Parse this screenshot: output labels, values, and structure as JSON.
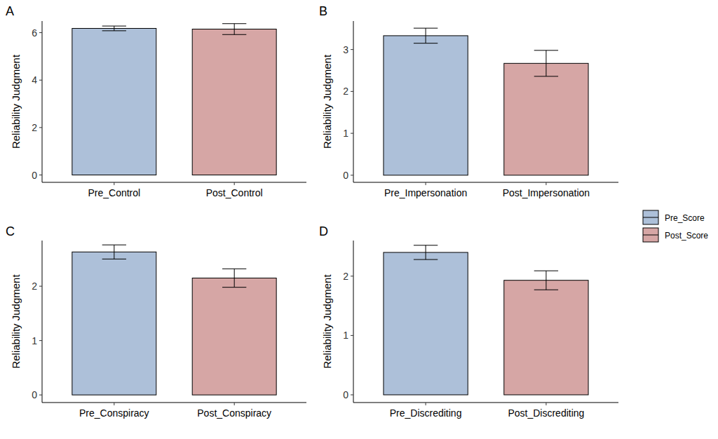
{
  "chart_data": [
    {
      "type": "bar",
      "title": "A",
      "y_label": "Reliability Judgment",
      "categories": [
        "Pre_Control",
        "Post_Control"
      ],
      "values": [
        6.18,
        6.15
      ],
      "errors": [
        0.1,
        0.23
      ],
      "colors": [
        "#adc0d9",
        "#d6a6a5"
      ],
      "ylim": [
        -0.31,
        6.49
      ],
      "yticks": [
        0,
        2,
        4,
        6
      ]
    },
    {
      "type": "bar",
      "title": "B",
      "y_label": "Reliability Judgment",
      "categories": [
        "Pre_Impersonation",
        "Post_Impersonation"
      ],
      "values": [
        3.33,
        2.67
      ],
      "errors": [
        0.18,
        0.31
      ],
      "colors": [
        "#adc0d9",
        "#d6a6a5"
      ],
      "ylim": [
        -0.17,
        3.68
      ],
      "yticks": [
        0,
        1,
        2,
        3
      ]
    },
    {
      "type": "bar",
      "title": "C",
      "y_label": "Reliability Judgment",
      "categories": [
        "Pre_Conspiracy",
        "Post_Conspiracy"
      ],
      "values": [
        2.63,
        2.15
      ],
      "errors": [
        0.13,
        0.17
      ],
      "colors": [
        "#adc0d9",
        "#d6a6a5"
      ],
      "ylim": [
        -0.14,
        2.84
      ],
      "yticks": [
        0,
        1,
        2
      ]
    },
    {
      "type": "bar",
      "title": "D",
      "y_label": "Reliability Judgment",
      "categories": [
        "Pre_Discrediting",
        "Post_Discrediting"
      ],
      "values": [
        2.4,
        1.93
      ],
      "errors": [
        0.12,
        0.16
      ],
      "colors": [
        "#adc0d9",
        "#d6a6a5"
      ],
      "ylim": [
        -0.13,
        2.6
      ],
      "yticks": [
        0,
        1,
        2
      ]
    }
  ],
  "shared_legend": {
    "entries": [
      {
        "name": "Pre_Score",
        "color": "#adc0d9"
      },
      {
        "name": "Post_Score",
        "color": "#d6a6a5"
      }
    ]
  }
}
